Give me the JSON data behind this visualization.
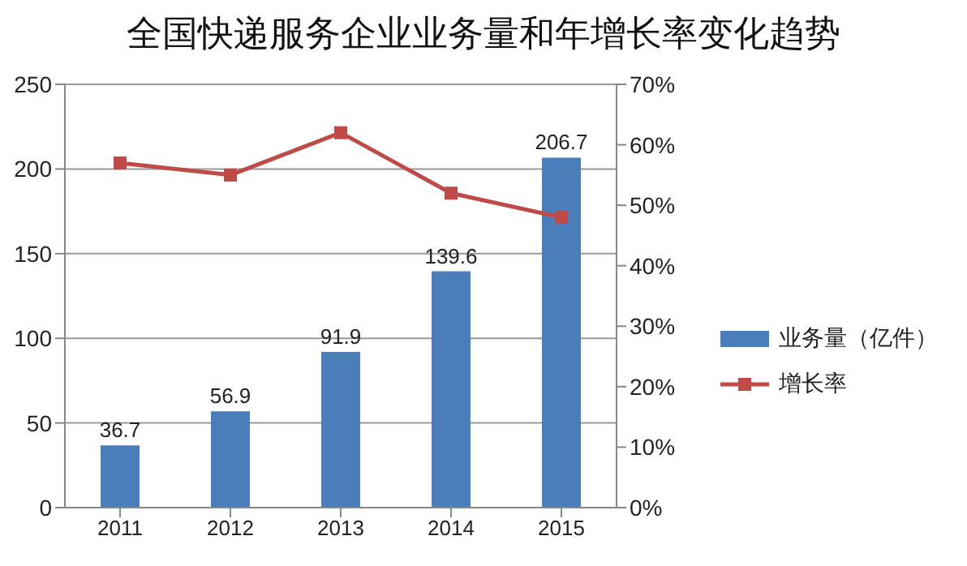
{
  "chart_data": {
    "type": "bar",
    "title": "全国快递服务企业业务量和年增长率变化趋势",
    "categories": [
      "2011",
      "2012",
      "2013",
      "2014",
      "2015"
    ],
    "series": [
      {
        "name": "业务量（亿件）",
        "color": "#4a7ebb",
        "values": [
          36.7,
          56.9,
          91.9,
          139.6,
          206.7
        ],
        "value_labels": [
          "36.7",
          "56.9",
          "91.9",
          "139.6",
          "206.7"
        ]
      },
      {
        "name": "增长率",
        "type": "line",
        "axis": "y2",
        "color": "#be4b48",
        "marker": "square",
        "values": [
          57,
          55,
          62,
          52,
          48
        ]
      }
    ],
    "ylim": [
      0,
      250
    ],
    "yticks": [
      0,
      50,
      100,
      150,
      200,
      250
    ],
    "y2lim": [
      0,
      70
    ],
    "y2ticks": [
      {
        "value": 0,
        "label": "0%"
      },
      {
        "value": 10,
        "label": "10%"
      },
      {
        "value": 20,
        "label": "20%"
      },
      {
        "value": 30,
        "label": "30%"
      },
      {
        "value": 40,
        "label": "40%"
      },
      {
        "value": 50,
        "label": "50%"
      },
      {
        "value": 60,
        "label": "60%"
      },
      {
        "value": 70,
        "label": "70%"
      }
    ],
    "grid": "y",
    "legend": "right"
  }
}
